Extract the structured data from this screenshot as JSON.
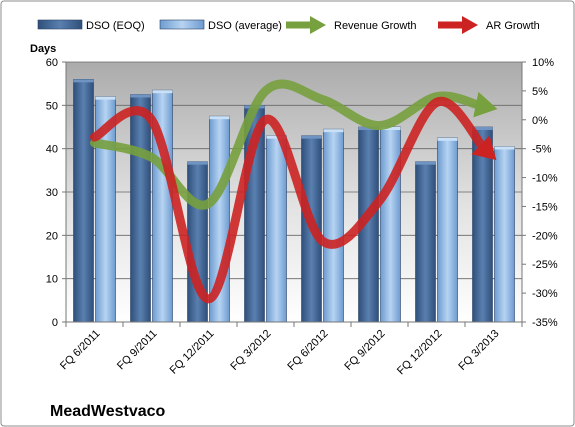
{
  "chart_data": {
    "type": "bar",
    "company_label": "MeadWestvaco",
    "categories": [
      "FQ 6/2011",
      "FQ 9/2011",
      "FQ 12/2011",
      "FQ 3/2012",
      "FQ 6/2012",
      "FQ 9/2012",
      "FQ 12/2012",
      "FQ 3/2013"
    ],
    "ylabel": "Days",
    "ylim": [
      0,
      60
    ],
    "yticks": [
      "0",
      "10",
      "20",
      "30",
      "40",
      "50",
      "60"
    ],
    "y2lim": [
      -35,
      10
    ],
    "y2ticks": [
      "-35%",
      "-30%",
      "-25%",
      "-20%",
      "-15%",
      "-10%",
      "-5%",
      "0%",
      "5%",
      "10%"
    ],
    "grid": true,
    "legend_position": "top",
    "series": [
      {
        "name": "DSO (EOQ)",
        "kind": "bar",
        "axis": "left",
        "color": "#4a6d9b",
        "values": [
          56,
          52.5,
          37,
          50,
          43,
          45,
          37,
          45
        ]
      },
      {
        "name": "DSO (average)",
        "kind": "bar",
        "axis": "left",
        "color": "#9cc0e8",
        "values": [
          52,
          53.5,
          47.5,
          43,
          44.5,
          45,
          42.5,
          40.5
        ]
      },
      {
        "name": "Revenue Growth",
        "kind": "line",
        "axis": "right",
        "color": "#77a03e",
        "values": [
          -4,
          -6.5,
          -14.5,
          5,
          3.5,
          -1,
          4,
          2
        ]
      },
      {
        "name": "AR Growth",
        "kind": "line",
        "axis": "right",
        "color": "#cc2222",
        "values": [
          -3,
          0,
          -31,
          0,
          -21,
          -14,
          3,
          -6.5
        ]
      }
    ]
  }
}
